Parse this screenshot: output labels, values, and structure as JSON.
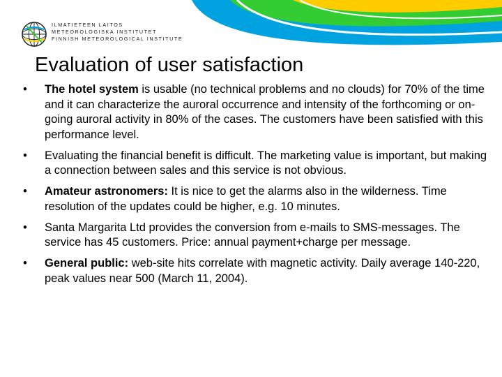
{
  "header": {
    "org_lines": [
      "ILMATIETEEN LAITOS",
      "METEOROLOGISKA INSTITUTET",
      "FINNISH METEOROLOGICAL INSTITUTE"
    ],
    "logo_icon": "fmi-globe-logo-icon",
    "decor_colors": [
      "#00a3e0",
      "#33cc33",
      "#ffcc00"
    ]
  },
  "title": "Evaluation of user satisfaction",
  "bullet_glyph": "•",
  "bullets": [
    {
      "lead": "The hotel system",
      "text": " is usable (no technical problems and no clouds) for 70% of the time and it can characterize the auroral occurrence and intensity of the forthcoming or on-going auroral activity in 80% of the cases. The customers have been satisfied with this performance level."
    },
    {
      "lead": "",
      "text": "Evaluating the financial benefit is difficult. The marketing value is important, but making a connection between sales and this service is not obvious."
    },
    {
      "lead": "Amateur astronomers:",
      "text": " It is nice to get the alarms also in the wilderness. Time resolution of the updates could be higher, e.g. 10 minutes."
    },
    {
      "lead": "",
      "text": "Santa Margarita Ltd provides the conversion from e-mails to SMS-messages. The service has 45 customers. Price: annual payment+charge per message."
    },
    {
      "lead": "General public:",
      "text": " web-site hits correlate with magnetic activity. Daily average 140-220, peak values near 500 (March 11, 2004)."
    }
  ]
}
